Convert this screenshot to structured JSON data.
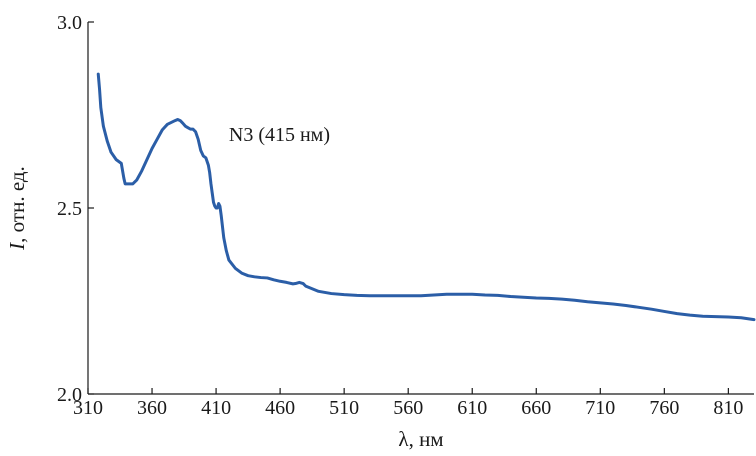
{
  "chart_data": {
    "type": "line",
    "title": "",
    "xlabel": "λ, нм",
    "ylabel_italic": "I",
    "ylabel_rest": ", отн. ед.",
    "xlim": [
      310,
      830
    ],
    "ylim": [
      2.0,
      3.0
    ],
    "x_ticks": [
      310,
      360,
      410,
      460,
      510,
      560,
      610,
      660,
      710,
      760,
      810
    ],
    "y_ticks": [
      2.0,
      2.5,
      3.0
    ],
    "y_tick_labels": [
      "2.0",
      "2.5",
      "3.0"
    ],
    "grid": false,
    "annotation": {
      "text": "N3 (415 нм)",
      "x": 420,
      "y": 2.68
    },
    "series": [
      {
        "color": "#2b5ea7",
        "x": [
          318,
          319,
          320,
          322,
          325,
          328,
          332,
          336,
          338,
          339,
          340,
          342,
          345,
          348,
          352,
          356,
          360,
          364,
          368,
          372,
          375,
          378,
          380,
          382,
          384,
          386,
          388,
          390,
          392,
          394,
          396,
          398,
          400,
          402,
          404,
          405,
          406,
          407,
          408,
          409,
          410,
          411,
          412,
          413,
          414,
          416,
          418,
          420,
          425,
          430,
          435,
          440,
          445,
          450,
          455,
          460,
          465,
          470,
          472,
          475,
          478,
          480,
          485,
          490,
          500,
          510,
          520,
          530,
          540,
          550,
          560,
          570,
          580,
          590,
          600,
          610,
          620,
          630,
          640,
          650,
          660,
          670,
          680,
          690,
          700,
          710,
          720,
          730,
          740,
          750,
          760,
          770,
          780,
          790,
          800,
          810,
          820,
          830
        ],
        "values": [
          2.86,
          2.82,
          2.77,
          2.72,
          2.68,
          2.65,
          2.63,
          2.62,
          2.58,
          2.565,
          2.565,
          2.565,
          2.565,
          2.575,
          2.6,
          2.63,
          2.66,
          2.685,
          2.71,
          2.725,
          2.73,
          2.735,
          2.738,
          2.735,
          2.728,
          2.72,
          2.716,
          2.712,
          2.712,
          2.705,
          2.685,
          2.655,
          2.64,
          2.635,
          2.615,
          2.595,
          2.565,
          2.54,
          2.515,
          2.505,
          2.5,
          2.5,
          2.512,
          2.505,
          2.48,
          2.42,
          2.385,
          2.36,
          2.338,
          2.325,
          2.318,
          2.315,
          2.313,
          2.312,
          2.307,
          2.303,
          2.3,
          2.296,
          2.297,
          2.3,
          2.297,
          2.29,
          2.283,
          2.276,
          2.27,
          2.267,
          2.265,
          2.264,
          2.264,
          2.264,
          2.264,
          2.264,
          2.266,
          2.268,
          2.268,
          2.268,
          2.266,
          2.265,
          2.262,
          2.26,
          2.258,
          2.257,
          2.255,
          2.252,
          2.248,
          2.245,
          2.242,
          2.238,
          2.233,
          2.228,
          2.222,
          2.216,
          2.212,
          2.209,
          2.208,
          2.207,
          2.205,
          2.2
        ]
      }
    ]
  }
}
